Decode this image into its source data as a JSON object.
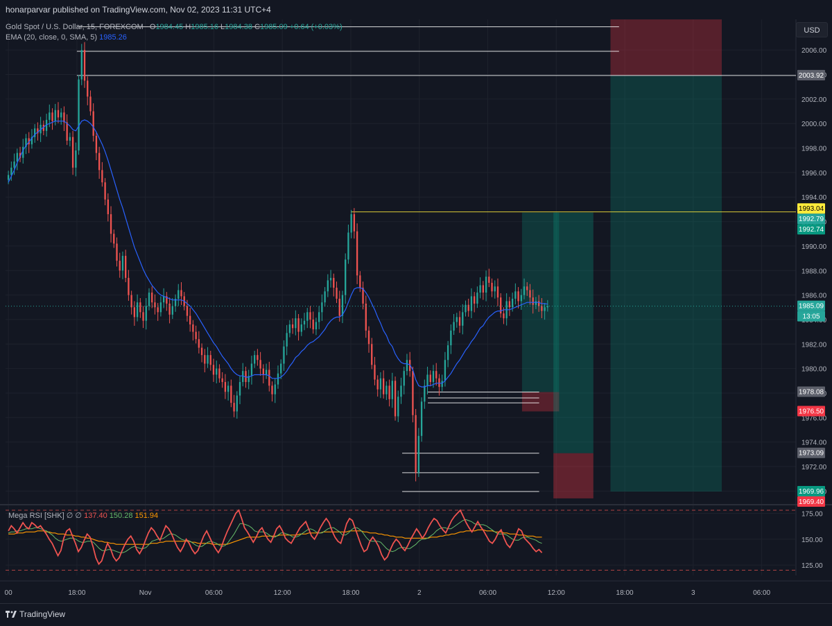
{
  "header": {
    "published": "honarparvar published on TradingView.com, Nov 02, 2023 11:31 UTC+4"
  },
  "legend": {
    "symbol": "Gold Spot / U.S. Dollar, 15, FOREXCOM",
    "o_label": "O",
    "o": "1984.45",
    "h_label": "H",
    "h": "1985.16",
    "l_label": "L",
    "l": "1984.38",
    "c_label": "C",
    "c": "1985.09",
    "change": "+0.64 (+0.03%)",
    "ema_label": "EMA (20, close, 0, SMA, 5)",
    "ema_value": "1985.26"
  },
  "rsi_legend": {
    "name": "Mega RSI [SHK]",
    "sym1": "∅",
    "sym2": "∅",
    "v1": "137.40",
    "v2": "150.28",
    "v3": "151.94"
  },
  "currency": "USD",
  "footer": {
    "brand": "TradingView"
  },
  "colors": {
    "bg": "#131722",
    "up": "#26a69a",
    "down": "#ef5350",
    "ema": "#2962ff",
    "grid": "#1e222d",
    "axis_text": "#b2b5be",
    "yellow": "#ffeb3b",
    "rsi_main": "#ef5350",
    "rsi_signal": "#66bb6a",
    "rsi_slow": "#ff9800"
  },
  "chart_data": {
    "type": "candlestick",
    "main_axis": {
      "min": 1969.0,
      "max": 2008.5,
      "ticks": [
        "2006.00",
        "2004.00",
        "2002.00",
        "2000.00",
        "1998.00",
        "1996.00",
        "1994.00",
        "1992.00",
        "1990.00",
        "1988.00",
        "1986.00",
        "1984.00",
        "1982.00",
        "1980.00",
        "1978.00",
        "1976.00",
        "1974.00",
        "1972.00",
        "1970.00"
      ]
    },
    "x_ticks": [
      {
        "label": "00",
        "t": 0
      },
      {
        "label": "18:00",
        "t": 24
      },
      {
        "label": "Nov",
        "t": 48
      },
      {
        "label": "06:00",
        "t": 72
      },
      {
        "label": "12:00",
        "t": 96
      },
      {
        "label": "18:00",
        "t": 120
      },
      {
        "label": "2",
        "t": 144
      },
      {
        "label": "06:00",
        "t": 168
      },
      {
        "label": "12:00",
        "t": 192
      },
      {
        "label": "18:00",
        "t": 216
      },
      {
        "label": "3",
        "t": 240
      },
      {
        "label": "06:00",
        "t": 264
      }
    ],
    "x_range": [
      -1,
      276
    ],
    "price_labels": [
      {
        "text": "2003.92",
        "value": 2003.92,
        "color": "#5d606b",
        "fg": "#ffffff"
      },
      {
        "text": "1993.04",
        "value": 1993.04,
        "color": "#ffeb3b",
        "fg": "#000000"
      },
      {
        "text": "1992.79",
        "value": 1992.79,
        "color": "#26a69a",
        "fg": "#ffffff"
      },
      {
        "text": "1992.74",
        "value": 1992.74,
        "color": "#089981",
        "fg": "#ffffff"
      },
      {
        "text": "1985.09",
        "value": 1985.09,
        "color": "#26a69a",
        "fg": "#ffffff"
      },
      {
        "text": "13:05",
        "value": 1985.09,
        "color": "#26a69a",
        "fg": "#ffffff",
        "sub": true
      },
      {
        "text": "1978.08",
        "value": 1978.08,
        "color": "#5d606b",
        "fg": "#ffffff"
      },
      {
        "text": "1976.50",
        "value": 1976.5,
        "color": "#f23645",
        "fg": "#ffffff"
      },
      {
        "text": "1973.09",
        "value": 1973.09,
        "color": "#5d606b",
        "fg": "#ffffff"
      },
      {
        "text": "1969.96",
        "value": 1969.96,
        "color": "#089981",
        "fg": "#ffffff"
      },
      {
        "text": "1969.40",
        "value": 1969.4,
        "color": "#f23645",
        "fg": "#ffffff"
      }
    ],
    "close_series": [
      1995.8,
      1996.4,
      1996.9,
      1997.6,
      1997.2,
      1998.1,
      1998.8,
      1998.3,
      1998.9,
      1999.6,
      1999.2,
      1999.9,
      1999.4,
      2000.3,
      2000.9,
      2000.2,
      2001.1,
      2000.5,
      2000.9,
      2000.1,
      1998.6,
      1998.9,
      1996.4,
      1997.8,
      2003.6,
      2006.0,
      2003.5,
      2002.2,
      2001.0,
      1999.0,
      1997.6,
      1996.2,
      1995.2,
      1993.8,
      1992.6,
      1991.0,
      1990.2,
      1988.8,
      1988.0,
      1989.2,
      1987.4,
      1986.0,
      1985.0,
      1984.2,
      1985.4,
      1984.6,
      1983.9,
      1985.1,
      1986.2,
      1985.4,
      1985.0,
      1984.6,
      1985.4,
      1985.9,
      1985.3,
      1984.4,
      1985.1,
      1985.7,
      1986.4,
      1985.9,
      1985.1,
      1984.3,
      1983.6,
      1983.0,
      1982.4,
      1981.7,
      1981.1,
      1980.4,
      1981.1,
      1980.3,
      1979.5,
      1980.0,
      1979.2,
      1978.9,
      1978.1,
      1978.6,
      1977.2,
      1976.5,
      1977.8,
      1978.9,
      1979.8,
      1978.9,
      1979.4,
      1980.4,
      1981.1,
      1980.7,
      1980.0,
      1979.5,
      1979.9,
      1978.6,
      1977.9,
      1978.7,
      1979.6,
      1980.4,
      1981.8,
      1982.9,
      1983.6,
      1983.3,
      1984.1,
      1983.0,
      1983.6,
      1983.9,
      1984.6,
      1984.0,
      1983.2,
      1983.8,
      1984.6,
      1985.4,
      1986.3,
      1987.2,
      1987.4,
      1986.6,
      1985.7,
      1984.3,
      1986.0,
      1988.9,
      1991.1,
      1992.6,
      1991.2,
      1987.6,
      1986.6,
      1985.3,
      1983.1,
      1982.0,
      1980.3,
      1979.1,
      1978.3,
      1979.2,
      1977.9,
      1978.6,
      1977.5,
      1979.0,
      1976.1,
      1977.7,
      1978.6,
      1979.8,
      1980.7,
      1979.8,
      1976.2,
      1971.5,
      1974.5,
      1977.3,
      1978.6,
      1979.5,
      1978.9,
      1979.8,
      1979.2,
      1978.5,
      1979.0,
      1980.7,
      1981.9,
      1983.1,
      1983.8,
      1984.2,
      1983.5,
      1984.6,
      1985.2,
      1984.7,
      1985.9,
      1985.3,
      1986.2,
      1986.8,
      1986.2,
      1987.5,
      1987.0,
      1986.3,
      1986.7,
      1985.8,
      1984.5,
      1984.1,
      1985.5,
      1985.0,
      1985.7,
      1986.3,
      1985.5,
      1986.0,
      1986.7,
      1986.4,
      1985.8,
      1985.2,
      1985.5,
      1985.1,
      1984.7,
      1985.0,
      1985.09
    ],
    "ema_series": [
      1995.2,
      1995.7,
      1996.2,
      1996.8,
      1997.3,
      1997.8,
      1998.2,
      1998.5,
      1998.8,
      1999.1,
      1999.3,
      1999.5,
      1999.7,
      1999.9,
      2000.0,
      2000.1,
      2000.2,
      2000.2,
      2000.2,
      2000.2,
      2000.0,
      1999.8,
      1999.5,
      1999.4,
      1999.8,
      2000.2,
      2000.3,
      2000.2,
      2000.0,
      1999.7,
      1999.3,
      1998.8,
      1998.3,
      1997.7,
      1997.0,
      1996.2,
      1995.4,
      1994.6,
      1993.8,
      1993.1,
      1992.3,
      1991.5,
      1990.7,
      1989.9,
      1989.3,
      1988.7,
      1988.1,
      1987.6,
      1987.2,
      1986.8,
      1986.5,
      1986.2,
      1986.0,
      1985.9,
      1985.8,
      1985.7,
      1985.6,
      1985.6,
      1985.6,
      1985.6,
      1985.5,
      1985.3,
      1985.1,
      1984.8,
      1984.5,
      1984.1,
      1983.7,
      1983.3,
      1982.9,
      1982.5,
      1982.1,
      1981.8,
      1981.4,
      1981.0,
      1980.7,
      1980.4,
      1980.0,
      1979.7,
      1979.5,
      1979.4,
      1979.4,
      1979.3,
      1979.3,
      1979.4,
      1979.5,
      1979.5,
      1979.5,
      1979.5,
      1979.5,
      1979.4,
      1979.2,
      1979.2,
      1979.2,
      1979.3,
      1979.5,
      1979.8,
      1980.2,
      1980.5,
      1980.9,
      1981.1,
      1981.4,
      1981.6,
      1981.9,
      1982.1,
      1982.2,
      1982.4,
      1982.6,
      1982.9,
      1983.2,
      1983.6,
      1983.9,
      1984.1,
      1984.2,
      1984.2,
      1984.4,
      1984.8,
      1985.4,
      1986.0,
      1986.5,
      1986.6,
      1986.6,
      1986.5,
      1986.2,
      1985.8,
      1985.3,
      1984.8,
      1984.2,
      1983.7,
      1983.1,
      1982.7,
      1982.1,
      1981.8,
      1981.2,
      1980.8,
      1980.5,
      1980.4,
      1980.4,
      1980.3,
      1979.9,
      1979.1,
      1978.6,
      1978.5,
      1978.5,
      1978.6,
      1978.6,
      1978.7,
      1978.8,
      1978.8,
      1978.8,
      1979.0,
      1979.3,
      1979.6,
      1980.0,
      1980.4,
      1980.7,
      1981.1,
      1981.5,
      1981.8,
      1982.2,
      1982.5,
      1982.9,
      1983.3,
      1983.5,
      1983.9,
      1984.2,
      1984.4,
      1984.6,
      1984.7,
      1984.7,
      1984.8,
      1984.8,
      1984.8,
      1984.9,
      1985.0,
      1985.1,
      1985.2,
      1985.3,
      1985.4,
      1985.4,
      1985.4,
      1985.4,
      1985.4,
      1985.3,
      1985.3,
      1985.26
    ],
    "horizontal_levels": [
      {
        "value": 2007.9,
        "from": 24.0,
        "to": 214.0,
        "color": "#ffffff"
      },
      {
        "value": 2005.9,
        "from": 24.0,
        "to": 214.0,
        "color": "#ffffff"
      },
      {
        "value": 2003.92,
        "from": 24.0,
        "to": 276.0,
        "color": "#ffffff"
      },
      {
        "value": 1992.79,
        "from": 120.0,
        "to": 276.0,
        "color": "#ffeb3b"
      },
      {
        "value": 1978.08,
        "from": 147.0,
        "to": 186.0,
        "color": "#ffffff"
      },
      {
        "value": 1977.6,
        "from": 147.0,
        "to": 186.0,
        "color": "#ffffff"
      },
      {
        "value": 1977.2,
        "from": 147.0,
        "to": 186.0,
        "color": "#ffffff"
      },
      {
        "value": 1973.09,
        "from": 138.0,
        "to": 186.0,
        "color": "#ffffff"
      },
      {
        "value": 1971.5,
        "from": 138.0,
        "to": 186.0,
        "color": "#ffffff"
      },
      {
        "value": 1969.96,
        "from": 138.0,
        "to": 186.0,
        "color": "#ffffff"
      }
    ],
    "position_boxes": [
      {
        "from": 180.0,
        "to": 193.0,
        "top": 1992.74,
        "bottom": 1978.08,
        "color": "rgba(8,153,129,0.25)"
      },
      {
        "from": 180.0,
        "to": 193.0,
        "top": 1978.08,
        "bottom": 1976.5,
        "color": "rgba(242,54,69,0.30)"
      },
      {
        "from": 191.0,
        "to": 205.0,
        "top": 1992.74,
        "bottom": 1973.09,
        "color": "rgba(8,153,129,0.30)"
      },
      {
        "from": 191.0,
        "to": 205.0,
        "top": 1973.09,
        "bottom": 1969.4,
        "color": "rgba(242,54,69,0.35)"
      },
      {
        "from": 211.0,
        "to": 250.0,
        "top": 2009.0,
        "bottom": 2003.92,
        "color": "rgba(242,54,69,0.30)"
      },
      {
        "from": 211.0,
        "to": 250.0,
        "top": 2003.92,
        "bottom": 1969.96,
        "color": "rgba(8,153,129,0.25)"
      }
    ],
    "rsi_axis": {
      "min": 115,
      "max": 182,
      "ticks": [
        "175.00",
        "150.00",
        "125.00"
      ],
      "levels": [
        178,
        120
      ]
    },
    "rsi_main": [
      158,
      163,
      160,
      156,
      161,
      166,
      162,
      160,
      166,
      164,
      161,
      163,
      159,
      155,
      150,
      146,
      140,
      134,
      139,
      151,
      158,
      160,
      153,
      146,
      138,
      142,
      149,
      155,
      152,
      143,
      132,
      126,
      129,
      138,
      146,
      141,
      133,
      129,
      132,
      139,
      145,
      150,
      153,
      148,
      140,
      136,
      141,
      149,
      156,
      161,
      158,
      153,
      149,
      156,
      163,
      160,
      155,
      148,
      142,
      138,
      143,
      150,
      146,
      140,
      136,
      139,
      146,
      153,
      158,
      152,
      146,
      141,
      137,
      142,
      150,
      157,
      163,
      169,
      175,
      178,
      170,
      161,
      157,
      152,
      147,
      152,
      158,
      161,
      155,
      150,
      147,
      153,
      160,
      163,
      158,
      151,
      148,
      146,
      151,
      156,
      161,
      164,
      167,
      160,
      153,
      150,
      155,
      161,
      166,
      170,
      166,
      158,
      152,
      148,
      146,
      155,
      165,
      170,
      168,
      160,
      152,
      144,
      138,
      140,
      148,
      152,
      148,
      143,
      135,
      130,
      133,
      140,
      146,
      150,
      147,
      142,
      139,
      144,
      150,
      155,
      160,
      156,
      151,
      155,
      161,
      166,
      170,
      168,
      163,
      159,
      156,
      162,
      168,
      172,
      175,
      178,
      172,
      166,
      161,
      157,
      162,
      167,
      162,
      158,
      153,
      148,
      146,
      150,
      156,
      159,
      151,
      145,
      142,
      147,
      153,
      160,
      158,
      151,
      148,
      145,
      141,
      138,
      140,
      137
    ],
    "rsi_signal": [
      156,
      157,
      157,
      158,
      158,
      159,
      160,
      160,
      160,
      161,
      161,
      160,
      159,
      158,
      156,
      154,
      151,
      149,
      148,
      149,
      150,
      151,
      151,
      150,
      148,
      147,
      147,
      148,
      148,
      147,
      144,
      141,
      139,
      139,
      140,
      140,
      139,
      138,
      137,
      137,
      138,
      140,
      142,
      143,
      142,
      141,
      141,
      142,
      145,
      148,
      149,
      150,
      150,
      151,
      153,
      155,
      155,
      154,
      152,
      150,
      149,
      149,
      148,
      146,
      144,
      143,
      143,
      145,
      147,
      148,
      147,
      146,
      144,
      143,
      144,
      147,
      151,
      155,
      160,
      165,
      165,
      164,
      163,
      161,
      158,
      157,
      157,
      157,
      156,
      154,
      152,
      152,
      154,
      156,
      156,
      155,
      154,
      152,
      152,
      153,
      155,
      157,
      159,
      160,
      159,
      157,
      156,
      156,
      158,
      160,
      161,
      161,
      159,
      157,
      154,
      154,
      156,
      159,
      161,
      161,
      159,
      156,
      152,
      149,
      148,
      148,
      148,
      147,
      144,
      141,
      139,
      138,
      139,
      141,
      142,
      142,
      141,
      141,
      143,
      145,
      148,
      150,
      150,
      151,
      153,
      155,
      158,
      160,
      161,
      161,
      160,
      160,
      162,
      164,
      166,
      168,
      169,
      168,
      167,
      165,
      164,
      164,
      164,
      163,
      161,
      159,
      157,
      155,
      155,
      155,
      154,
      152,
      150,
      149,
      149,
      151,
      152,
      152,
      151,
      150,
      149,
      147,
      146
    ],
    "rsi_slow": [
      155,
      155,
      155,
      156,
      156,
      156,
      157,
      157,
      157,
      157,
      158,
      158,
      158,
      157,
      157,
      156,
      156,
      155,
      155,
      155,
      154,
      154,
      154,
      153,
      153,
      152,
      152,
      151,
      151,
      150,
      149,
      148,
      148,
      147,
      147,
      146,
      146,
      145,
      145,
      145,
      145,
      145,
      145,
      145,
      145,
      145,
      145,
      145,
      145,
      146,
      146,
      146,
      147,
      147,
      148,
      148,
      148,
      148,
      148,
      148,
      148,
      148,
      148,
      147,
      147,
      146,
      146,
      146,
      146,
      146,
      145,
      145,
      145,
      145,
      145,
      145,
      146,
      147,
      148,
      149,
      150,
      151,
      152,
      152,
      152,
      152,
      152,
      153,
      153,
      153,
      153,
      153,
      153,
      154,
      154,
      154,
      154,
      154,
      154,
      154,
      155,
      155,
      155,
      156,
      156,
      156,
      156,
      156,
      157,
      157,
      157,
      157,
      157,
      157,
      157,
      157,
      157,
      158,
      158,
      158,
      158,
      158,
      157,
      157,
      156,
      156,
      156,
      155,
      155,
      154,
      154,
      153,
      153,
      152,
      152,
      152,
      151,
      151,
      151,
      151,
      151,
      151,
      151,
      151,
      151,
      152,
      152,
      152,
      153,
      153,
      154,
      154,
      155,
      155,
      156,
      157,
      157,
      158,
      158,
      158,
      158,
      159,
      159,
      159,
      158,
      158,
      158,
      157,
      157,
      157,
      156,
      156,
      155,
      155,
      155,
      154,
      154,
      154,
      153,
      153,
      153,
      152,
      152,
      152
    ]
  }
}
